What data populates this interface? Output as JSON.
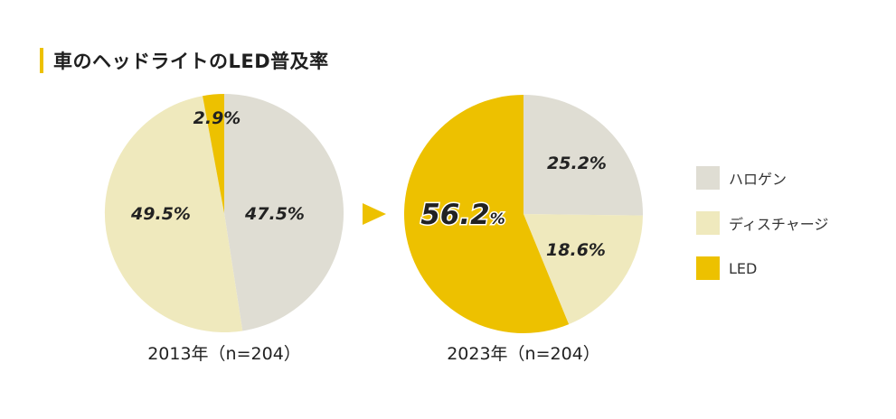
{
  "title": "車のヘッドライトのLED普及率",
  "colors": {
    "halogen": "#dfddd3",
    "discharge": "#efe9bd",
    "led": "#edc100",
    "accent": "#edc100",
    "arrow": "#edc100"
  },
  "legend": [
    {
      "label": "ハロゲン",
      "color": "#dfddd3"
    },
    {
      "label": "ディスチャージ",
      "color": "#efe9bd"
    },
    {
      "label": "LED",
      "color": "#edc100"
    }
  ],
  "chart_data": [
    {
      "type": "pie",
      "caption": "2013年（n=204）",
      "labels": [
        "ハロゲン",
        "ディスチャージ",
        "LED"
      ],
      "values": [
        47.5,
        49.5,
        2.9
      ],
      "value_labels": [
        "47.5%",
        "49.5%",
        "2.9%"
      ],
      "colors": [
        "#dfddd3",
        "#efe9bd",
        "#edc100"
      ]
    },
    {
      "type": "pie",
      "caption": "2023年（n=204）",
      "labels": [
        "ハロゲン",
        "ディスチャージ",
        "LED"
      ],
      "values": [
        25.2,
        18.6,
        56.2
      ],
      "value_labels": [
        "25.2%",
        "18.6%",
        "56.2%"
      ],
      "colors": [
        "#dfddd3",
        "#efe9bd",
        "#edc100"
      ]
    }
  ]
}
